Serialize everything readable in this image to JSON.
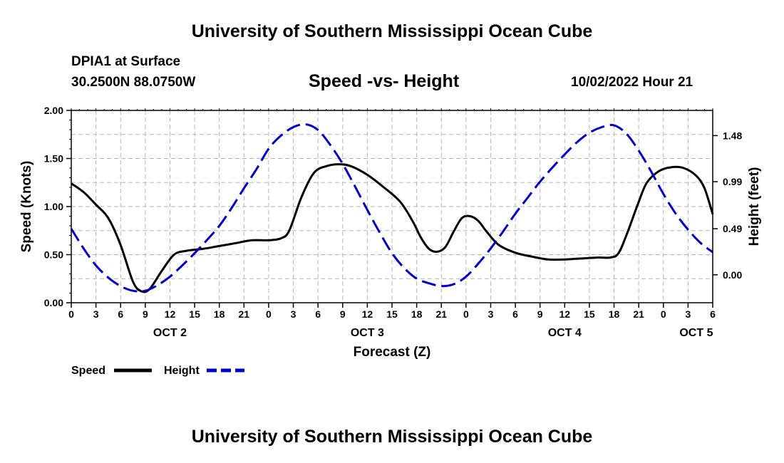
{
  "title": "University of Southern Mississippi Ocean Cube",
  "footer_title": "University of Southern Mississippi Ocean Cube",
  "station": {
    "name": "DPIA1 at Surface",
    "coords": "30.2500N  88.0750W",
    "datetime": "10/02/2022 Hour 21"
  },
  "chart_data": {
    "type": "line",
    "title": "Speed -vs- Height",
    "xlabel": "Forecast (Z)",
    "ylabel": "Speed (Knots)",
    "y2label": "Height (feet)",
    "x_unit": "hours since OCT 2 00Z",
    "xlim": [
      0,
      78
    ],
    "ylim": [
      0,
      2
    ],
    "y2lim": [
      -0.297,
      1.748
    ],
    "grid": true,
    "x_ticks": [
      {
        "x": 0,
        "label": "0"
      },
      {
        "x": 3,
        "label": "3"
      },
      {
        "x": 6,
        "label": "6"
      },
      {
        "x": 9,
        "label": "9"
      },
      {
        "x": 12,
        "label": "12"
      },
      {
        "x": 15,
        "label": "15"
      },
      {
        "x": 18,
        "label": "18"
      },
      {
        "x": 21,
        "label": "21"
      },
      {
        "x": 24,
        "label": "0"
      },
      {
        "x": 27,
        "label": "3"
      },
      {
        "x": 30,
        "label": "6"
      },
      {
        "x": 33,
        "label": "9"
      },
      {
        "x": 36,
        "label": "12"
      },
      {
        "x": 39,
        "label": "15"
      },
      {
        "x": 42,
        "label": "18"
      },
      {
        "x": 45,
        "label": "21"
      },
      {
        "x": 48,
        "label": "0"
      },
      {
        "x": 51,
        "label": "3"
      },
      {
        "x": 54,
        "label": "6"
      },
      {
        "x": 57,
        "label": "9"
      },
      {
        "x": 60,
        "label": "12"
      },
      {
        "x": 63,
        "label": "15"
      },
      {
        "x": 66,
        "label": "18"
      },
      {
        "x": 69,
        "label": "21"
      },
      {
        "x": 72,
        "label": "0"
      },
      {
        "x": 75,
        "label": "3"
      },
      {
        "x": 78,
        "label": "6"
      }
    ],
    "day_labels": [
      {
        "x": 12,
        "label": "OCT 2"
      },
      {
        "x": 36,
        "label": "OCT 3"
      },
      {
        "x": 60,
        "label": "OCT 4"
      },
      {
        "x": 76,
        "label": "OCT 5"
      }
    ],
    "y_ticks": [
      {
        "v": 0.0,
        "label": "0.00"
      },
      {
        "v": 0.5,
        "label": "0.50"
      },
      {
        "v": 1.0,
        "label": "1.00"
      },
      {
        "v": 1.5,
        "label": "1.50"
      },
      {
        "v": 2.0,
        "label": "2.00"
      }
    ],
    "y2_ticks": [
      {
        "v": 0.0,
        "label": "0.00"
      },
      {
        "v": 0.49,
        "label": "0.49"
      },
      {
        "v": 0.99,
        "label": "0.99"
      },
      {
        "v": 1.48,
        "label": "1.48"
      }
    ],
    "series": [
      {
        "name": "Speed",
        "axis": "left",
        "color": "#000000",
        "dash": "solid",
        "points": [
          [
            0,
            1.24
          ],
          [
            1.5,
            1.15
          ],
          [
            3,
            1.02
          ],
          [
            4.5,
            0.88
          ],
          [
            6,
            0.6
          ],
          [
            7.5,
            0.22
          ],
          [
            8.5,
            0.12
          ],
          [
            9.5,
            0.14
          ],
          [
            11,
            0.33
          ],
          [
            12.5,
            0.5
          ],
          [
            14,
            0.54
          ],
          [
            16,
            0.56
          ],
          [
            18,
            0.59
          ],
          [
            20,
            0.62
          ],
          [
            22,
            0.65
          ],
          [
            24,
            0.65
          ],
          [
            25.5,
            0.67
          ],
          [
            26.5,
            0.75
          ],
          [
            28,
            1.1
          ],
          [
            29.5,
            1.35
          ],
          [
            31,
            1.42
          ],
          [
            32.5,
            1.44
          ],
          [
            34,
            1.42
          ],
          [
            36,
            1.33
          ],
          [
            38,
            1.2
          ],
          [
            40,
            1.05
          ],
          [
            41.5,
            0.85
          ],
          [
            42.5,
            0.68
          ],
          [
            43.5,
            0.56
          ],
          [
            44.5,
            0.53
          ],
          [
            45.5,
            0.58
          ],
          [
            46.5,
            0.74
          ],
          [
            47.5,
            0.88
          ],
          [
            48.5,
            0.9
          ],
          [
            49.5,
            0.85
          ],
          [
            50.5,
            0.74
          ],
          [
            52,
            0.6
          ],
          [
            54,
            0.52
          ],
          [
            56,
            0.48
          ],
          [
            58,
            0.45
          ],
          [
            60,
            0.45
          ],
          [
            62,
            0.46
          ],
          [
            64,
            0.47
          ],
          [
            65.5,
            0.47
          ],
          [
            66.5,
            0.51
          ],
          [
            67.5,
            0.7
          ],
          [
            69,
            1.05
          ],
          [
            70,
            1.25
          ],
          [
            71.5,
            1.37
          ],
          [
            73,
            1.41
          ],
          [
            74.5,
            1.4
          ],
          [
            76,
            1.32
          ],
          [
            77,
            1.19
          ],
          [
            78,
            0.92
          ]
        ]
      },
      {
        "name": "Height",
        "axis": "right",
        "color": "#0000cc",
        "dash": "dashed",
        "points": [
          [
            0,
            0.49
          ],
          [
            1.5,
            0.28
          ],
          [
            3,
            0.1
          ],
          [
            4.5,
            -0.03
          ],
          [
            6,
            -0.12
          ],
          [
            7.5,
            -0.17
          ],
          [
            9,
            -0.17
          ],
          [
            10.5,
            -0.11
          ],
          [
            12,
            -0.02
          ],
          [
            13.5,
            0.1
          ],
          [
            15,
            0.23
          ],
          [
            16.5,
            0.37
          ],
          [
            18,
            0.52
          ],
          [
            19.5,
            0.71
          ],
          [
            21,
            0.92
          ],
          [
            22.5,
            1.12
          ],
          [
            24,
            1.34
          ],
          [
            25.5,
            1.48
          ],
          [
            27,
            1.57
          ],
          [
            28.5,
            1.6
          ],
          [
            30,
            1.54
          ],
          [
            31.5,
            1.38
          ],
          [
            33,
            1.18
          ],
          [
            34.5,
            0.94
          ],
          [
            36,
            0.69
          ],
          [
            37.5,
            0.45
          ],
          [
            39,
            0.23
          ],
          [
            40.5,
            0.07
          ],
          [
            42,
            -0.04
          ],
          [
            43.5,
            -0.09
          ],
          [
            45,
            -0.12
          ],
          [
            46.5,
            -0.1
          ],
          [
            48,
            -0.02
          ],
          [
            49.5,
            0.12
          ],
          [
            51,
            0.28
          ],
          [
            52.5,
            0.46
          ],
          [
            54,
            0.65
          ],
          [
            55.5,
            0.82
          ],
          [
            57,
            0.99
          ],
          [
            58.5,
            1.14
          ],
          [
            60,
            1.28
          ],
          [
            61.5,
            1.41
          ],
          [
            63,
            1.51
          ],
          [
            64.5,
            1.57
          ],
          [
            66,
            1.59
          ],
          [
            67.5,
            1.5
          ],
          [
            69,
            1.32
          ],
          [
            70.5,
            1.1
          ],
          [
            72,
            0.86
          ],
          [
            73.5,
            0.65
          ],
          [
            75,
            0.48
          ],
          [
            76.5,
            0.34
          ],
          [
            78,
            0.24
          ]
        ]
      }
    ],
    "legend": {
      "position": "bottom-left",
      "entries": [
        {
          "label": "Speed",
          "color": "#000000",
          "dash": "solid"
        },
        {
          "label": "Height",
          "color": "#0000cc",
          "dash": "dashed"
        }
      ]
    }
  }
}
